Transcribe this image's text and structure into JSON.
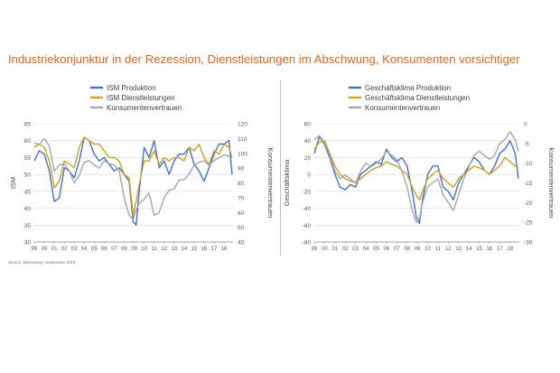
{
  "title": "Industriekonjunktur in der Rezession, Dienstleistungen im Abschwung, Konsumenten vorsichtiger",
  "source": "Source: Bloomberg, September 2019",
  "colors": {
    "blue": "#4472c4",
    "gold": "#c9a227",
    "gray": "#a6a6a6"
  },
  "chart_data": [
    {
      "type": "line",
      "xlabel": "",
      "ylabel": "ISM",
      "y2label": "Konsumentenvertrauen",
      "ylim": [
        30,
        65
      ],
      "y2lim": [
        40,
        120
      ],
      "yticks": [
        "30",
        "35",
        "40",
        "45",
        "50",
        "55",
        "60",
        "65"
      ],
      "y2ticks": [
        "40",
        "50",
        "60",
        "70",
        "80",
        "90",
        "100",
        "110",
        "120"
      ],
      "xticks": [
        "99",
        "00",
        "01",
        "02",
        "03",
        "04",
        "05",
        "06",
        "07",
        "08",
        "09",
        "10",
        "11",
        "12",
        "13",
        "14",
        "15",
        "16",
        "17",
        "18"
      ],
      "grid": true,
      "legend": "top-center",
      "series": [
        {
          "name": "ISM Produktion",
          "axis": "left",
          "color": "#4472c4",
          "x": [
            1999.0,
            1999.5,
            2000.0,
            2000.5,
            2001.0,
            2001.5,
            2002.0,
            2002.5,
            2003.0,
            2003.5,
            2004.0,
            2004.5,
            2005.0,
            2005.5,
            2006.0,
            2006.5,
            2007.0,
            2007.5,
            2008.0,
            2008.5,
            2008.9,
            2009.2,
            2009.5,
            2010.0,
            2010.5,
            2011.0,
            2011.5,
            2012.0,
            2012.5,
            2013.0,
            2013.5,
            2014.0,
            2014.5,
            2015.0,
            2015.5,
            2016.0,
            2016.5,
            2017.0,
            2017.5,
            2018.0,
            2018.5,
            2018.8
          ],
          "values": [
            54,
            57,
            56,
            51,
            42,
            43,
            52,
            51,
            49,
            54,
            61,
            60,
            56,
            54,
            55,
            53,
            51,
            52,
            50,
            48,
            36,
            35,
            45,
            58,
            55,
            60,
            52,
            54,
            50,
            54,
            56,
            56,
            58,
            53,
            51,
            48,
            52,
            56,
            59,
            59,
            60,
            50
          ]
        },
        {
          "name": "ISM Dienstleistungen",
          "axis": "left",
          "color": "#c9a227",
          "x": [
            1999.0,
            1999.5,
            2000.0,
            2000.5,
            2001.0,
            2001.5,
            2002.0,
            2002.5,
            2003.0,
            2003.5,
            2004.0,
            2004.5,
            2005.0,
            2005.5,
            2006.0,
            2006.5,
            2007.0,
            2007.5,
            2008.0,
            2008.5,
            2008.9,
            2009.2,
            2009.5,
            2010.0,
            2010.5,
            2011.0,
            2011.5,
            2012.0,
            2012.5,
            2013.0,
            2013.5,
            2014.0,
            2014.5,
            2015.0,
            2015.5,
            2016.0,
            2016.5,
            2017.0,
            2017.5,
            2018.0,
            2018.5,
            2018.8
          ],
          "values": [
            58,
            59,
            58,
            54,
            46,
            48,
            54,
            53,
            52,
            58,
            61,
            60,
            59,
            59,
            57,
            55,
            55,
            54,
            50,
            49,
            38,
            42,
            47,
            54,
            54,
            57,
            53,
            55,
            54,
            55,
            55,
            54,
            58,
            57,
            59,
            55,
            53,
            57,
            56,
            59,
            58,
            55
          ]
        },
        {
          "name": "Konsumentenvertrauen",
          "axis": "right",
          "color": "#a6a6a6",
          "x": [
            1999.0,
            1999.5,
            2000.0,
            2000.5,
            2001.0,
            2001.5,
            2002.0,
            2002.5,
            2003.0,
            2003.5,
            2004.0,
            2004.5,
            2005.0,
            2005.5,
            2006.0,
            2006.5,
            2007.0,
            2007.5,
            2008.0,
            2008.5,
            2008.9,
            2009.2,
            2009.5,
            2010.0,
            2010.5,
            2011.0,
            2011.5,
            2012.0,
            2012.5,
            2013.0,
            2013.5,
            2014.0,
            2014.5,
            2015.0,
            2015.5,
            2016.0,
            2016.5,
            2017.0,
            2017.5,
            2018.0,
            2018.5,
            2018.8
          ],
          "values": [
            107,
            106,
            110,
            105,
            88,
            92,
            93,
            88,
            80,
            85,
            94,
            95,
            92,
            90,
            95,
            93,
            92,
            88,
            70,
            58,
            55,
            62,
            66,
            69,
            73,
            58,
            60,
            70,
            75,
            76,
            82,
            82,
            86,
            92,
            94,
            95,
            92,
            95,
            97,
            99,
            98,
            99
          ]
        }
      ]
    },
    {
      "type": "line",
      "xlabel": "",
      "ylabel": "Geschäftsklima",
      "y2label": "Konsumentenvertrauen",
      "ylim": [
        -80,
        60
      ],
      "y2lim": [
        -30,
        0
      ],
      "yticks": [
        "-80",
        "-60",
        "-40",
        "-20",
        "0",
        "20",
        "40",
        "60"
      ],
      "y2ticks": [
        "-30",
        "-25",
        "-20",
        "-15",
        "-10",
        "-5",
        "0"
      ],
      "xticks": [
        "99",
        "00",
        "01",
        "02",
        "03",
        "04",
        "05",
        "06",
        "07",
        "08",
        "09",
        "10",
        "11",
        "12",
        "13",
        "14",
        "15",
        "16",
        "17",
        "18"
      ],
      "grid": true,
      "legend": "top-center",
      "series": [
        {
          "name": "Geschäftsklima Produktion",
          "axis": "left",
          "color": "#4472c4",
          "x": [
            1999.0,
            1999.5,
            2000.0,
            2000.5,
            2001.0,
            2001.5,
            2002.0,
            2002.5,
            2003.0,
            2003.5,
            2004.0,
            2004.5,
            2005.0,
            2005.5,
            2006.0,
            2006.5,
            2007.0,
            2007.5,
            2008.0,
            2008.5,
            2008.9,
            2009.2,
            2009.5,
            2010.0,
            2010.5,
            2011.0,
            2011.5,
            2012.0,
            2012.5,
            2013.0,
            2013.5,
            2014.0,
            2014.5,
            2015.0,
            2015.5,
            2016.0,
            2016.5,
            2017.0,
            2017.5,
            2018.0,
            2018.5,
            2018.8
          ],
          "values": [
            25,
            45,
            35,
            20,
            0,
            -15,
            -18,
            -12,
            -15,
            0,
            5,
            10,
            15,
            12,
            30,
            20,
            15,
            20,
            10,
            -20,
            -50,
            -58,
            -30,
            0,
            10,
            10,
            -15,
            -20,
            -30,
            -10,
            0,
            10,
            20,
            15,
            5,
            0,
            10,
            25,
            30,
            40,
            25,
            -5
          ]
        },
        {
          "name": "Geschäftsklima Dienstleistungen",
          "axis": "left",
          "color": "#c9a227",
          "x": [
            1999.0,
            1999.5,
            2000.0,
            2000.5,
            2001.0,
            2001.5,
            2002.0,
            2002.5,
            2003.0,
            2003.5,
            2004.0,
            2004.5,
            2005.0,
            2005.5,
            2006.0,
            2006.5,
            2007.0,
            2007.5,
            2008.0,
            2008.5,
            2008.9,
            2009.2,
            2009.5,
            2010.0,
            2010.5,
            2011.0,
            2011.5,
            2012.0,
            2012.5,
            2013.0,
            2013.5,
            2014.0,
            2014.5,
            2015.0,
            2015.5,
            2016.0,
            2016.5,
            2017.0,
            2017.5,
            2018.0,
            2018.5,
            2018.8
          ],
          "values": [
            30,
            38,
            40,
            25,
            10,
            0,
            -5,
            -8,
            -10,
            -5,
            0,
            5,
            8,
            10,
            15,
            12,
            10,
            5,
            0,
            -15,
            -25,
            -30,
            -20,
            -5,
            0,
            5,
            -5,
            -10,
            -15,
            -5,
            0,
            5,
            10,
            8,
            5,
            0,
            5,
            10,
            20,
            15,
            10,
            8
          ]
        },
        {
          "name": "Konsumentenvertrauen",
          "axis": "right",
          "color": "#a6a6a6",
          "x": [
            1999.0,
            1999.5,
            2000.0,
            2000.5,
            2001.0,
            2001.5,
            2002.0,
            2002.5,
            2003.0,
            2003.5,
            2004.0,
            2004.5,
            2005.0,
            2005.5,
            2006.0,
            2006.5,
            2007.0,
            2007.5,
            2008.0,
            2008.5,
            2008.9,
            2009.2,
            2009.5,
            2010.0,
            2010.5,
            2011.0,
            2011.5,
            2012.0,
            2012.5,
            2013.0,
            2013.5,
            2014.0,
            2014.5,
            2015.0,
            2015.5,
            2016.0,
            2016.5,
            2017.0,
            2017.5,
            2018.0,
            2018.5,
            2018.8
          ],
          "values": [
            -4,
            -3,
            -5,
            -8,
            -12,
            -14,
            -13,
            -14,
            -15,
            -12,
            -10,
            -11,
            -10,
            -9,
            -7,
            -8,
            -9,
            -12,
            -16,
            -22,
            -25,
            -24,
            -20,
            -16,
            -15,
            -14,
            -18,
            -20,
            -22,
            -18,
            -14,
            -11,
            -8,
            -7,
            -8,
            -9,
            -8,
            -5,
            -4,
            -2,
            -4,
            -7
          ]
        }
      ]
    }
  ]
}
